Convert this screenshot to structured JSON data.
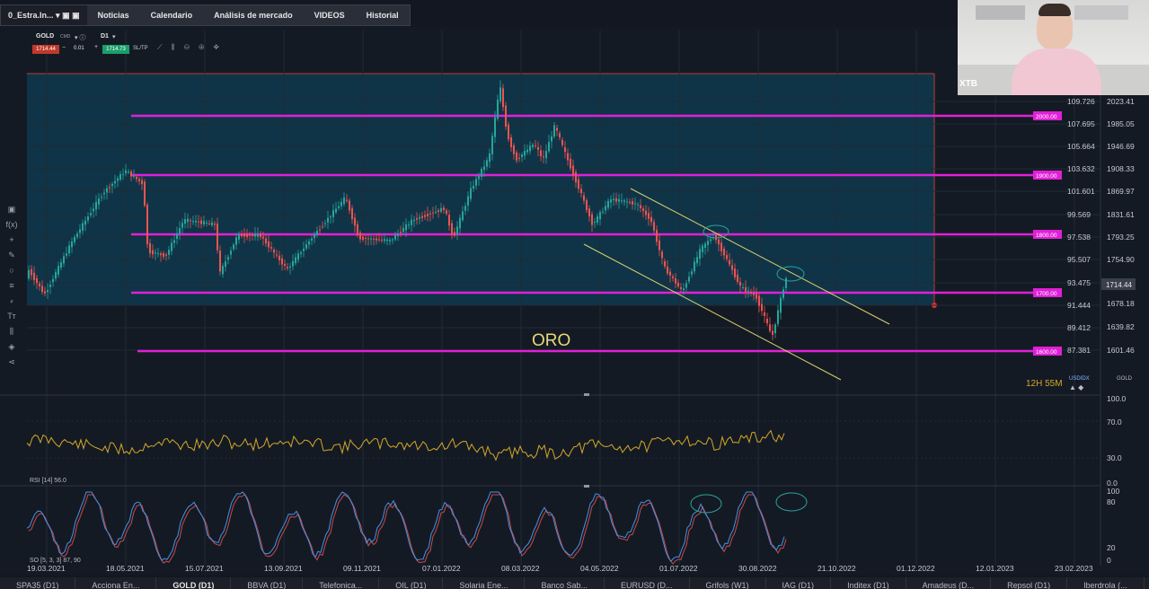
{
  "window_tabs": [
    {
      "label": "0_Estra.In...",
      "active": true
    },
    {
      "label": "Noticias"
    },
    {
      "label": "Calendario"
    },
    {
      "label": "Análisis de mercado"
    },
    {
      "label": "VIDEOS"
    },
    {
      "label": "Historial"
    }
  ],
  "toolbar": {
    "symbol": "GOLD",
    "symbol_sub": "CMD",
    "timeframe": "D1",
    "bid": "1714.44",
    "volume": "0.01",
    "ask": "1714.73",
    "sltp": "SL/TP"
  },
  "chart": {
    "annotation_label": "ORO",
    "timer": "12H 55M",
    "current_price": "1714.44",
    "usdidx_label": "USDIDX",
    "gold_label": "GOLD",
    "level_lines": [
      "2000.00",
      "1900.00",
      "1800.00",
      "1700.00",
      "1600.00"
    ],
    "usdidx_axis": [
      "109.726",
      "107.695",
      "105.664",
      "103.632",
      "101.601",
      "99.569",
      "97.538",
      "95.507",
      "93.475",
      "91.444",
      "89.412",
      "87.381"
    ],
    "gold_axis": [
      "2023.41",
      "1985.05",
      "1946.69",
      "1908.33",
      "1869.97",
      "1831.61",
      "1793.25",
      "1754.90",
      "1678.18",
      "1639.82",
      "1601.46"
    ],
    "rsi_label": "RSI [14] 56.0",
    "rsi_axis": [
      "100.0",
      "70.0",
      "30.0",
      "0.0"
    ],
    "so_label": "SO [5, 3, 3] 87, 90",
    "so_axis": [
      "100",
      "80",
      "20",
      "0"
    ],
    "dates": [
      "19.03.2021",
      "18.05.2021",
      "15.07.2021",
      "13.09.2021",
      "09.11.2021",
      "07.01.2022",
      "08.03.2022",
      "04.05.2022",
      "01.07.2022",
      "30.08.2022",
      "21.10.2022",
      "01.12.2022",
      "12.01.2023",
      "23.02.2023"
    ]
  },
  "webcam": {
    "label": "XTB"
  },
  "bottom_tabs": [
    "SPA35 (D1)",
    "Acciona En...",
    "GOLD (D1)",
    "BBVA (D1)",
    "Telefonica...",
    "OIL (D1)",
    "Solaria Ene...",
    "Banco Sab...",
    "EURUSD (D...",
    "Grifols (W1)",
    "IAG (D1)",
    "Inditex (D1)",
    "Amadeus (D...",
    "Repsol (D1)",
    "Iberdrola (..."
  ],
  "colors": {
    "level": "#e020d8",
    "bull": "#26a69a",
    "bear": "#ef5350",
    "rsi": "#d4a82a",
    "so_k": "#4a90e2",
    "channel": "#d8d070"
  }
}
